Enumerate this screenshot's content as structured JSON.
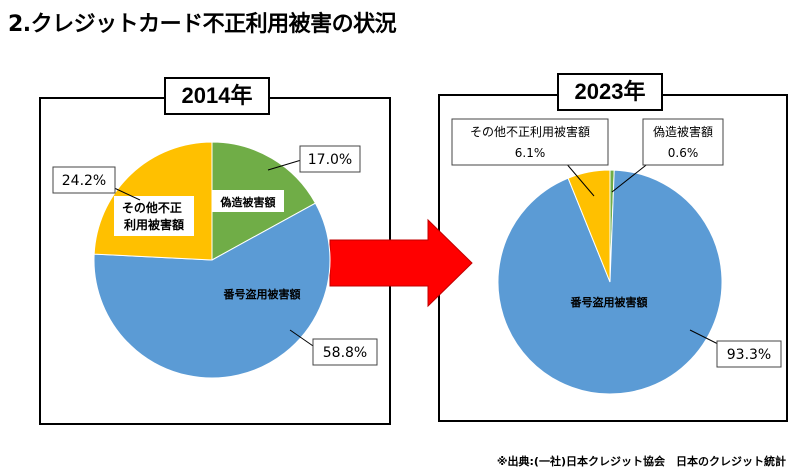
{
  "title": "2.クレジットカード不正利用被害の状況",
  "source": "※出典:(一社)日本クレジット協会　日本のクレジット統計",
  "colors": {
    "forgery": "#70ad47",
    "number_theft": "#5b9bd5",
    "other": "#ffc000",
    "arrow": "#ff0000"
  },
  "chart_data": [
    {
      "type": "pie",
      "title": "2014年",
      "labels": [
        "偽造被害額",
        "番号盗用被害額",
        "その他不正利用被害額"
      ],
      "values": [
        17.0,
        58.8,
        24.2
      ],
      "value_labels": [
        "17.0%",
        "58.8%",
        "24.2%"
      ],
      "inside_labels": [
        "偽造被害額",
        "番号盗用被害額",
        "その他不正\n利用被害額"
      ]
    },
    {
      "type": "pie",
      "title": "2023年",
      "labels": [
        "偽造被害額",
        "番号盗用被害額",
        "その他不正利用被害額"
      ],
      "values": [
        0.6,
        93.3,
        6.1
      ],
      "value_labels": [
        "0.6%",
        "93.3%",
        "6.1%"
      ],
      "inside_labels": [
        "",
        "番号盗用被害額",
        ""
      ]
    }
  ]
}
